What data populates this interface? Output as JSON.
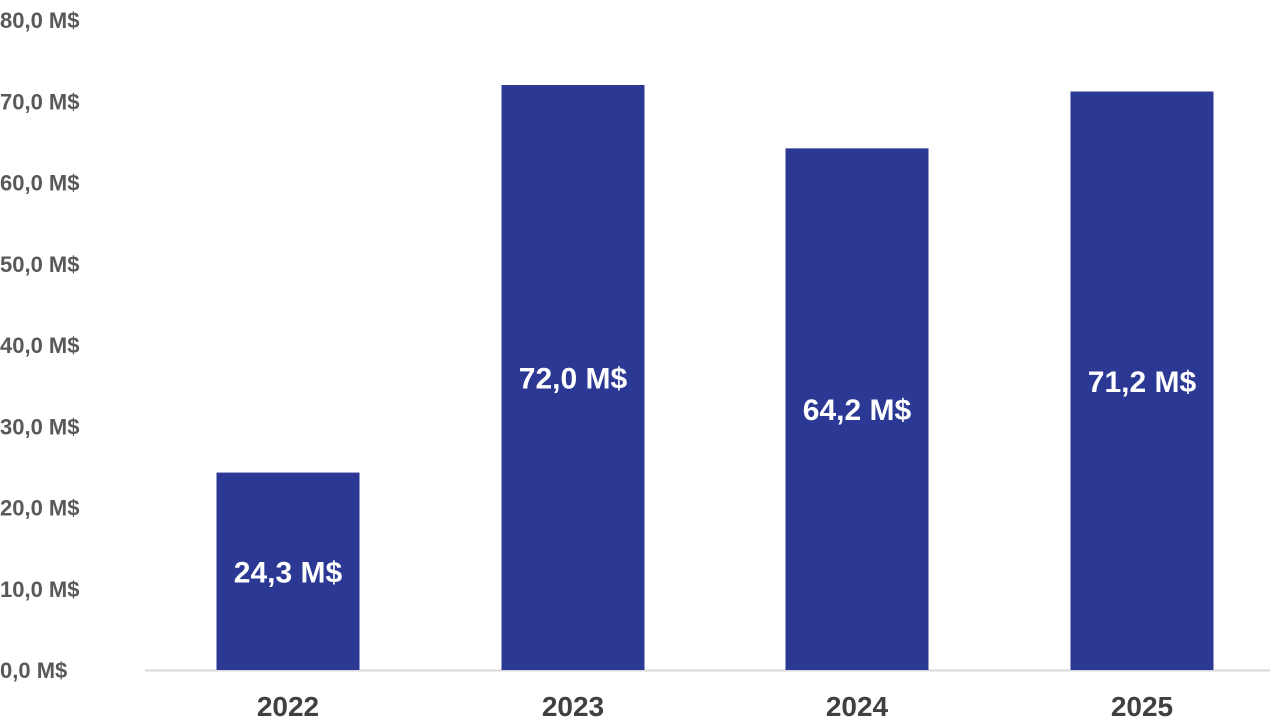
{
  "chart_data": {
    "type": "bar",
    "categories": [
      "2022",
      "2023",
      "2024",
      "2025"
    ],
    "values": [
      24.3,
      72.0,
      64.2,
      71.2
    ],
    "data_labels": [
      "24,3 M$",
      "72,0 M$",
      "64,2 M$",
      "71,2 M$"
    ],
    "ylim": [
      0,
      80
    ],
    "yticks": [
      "0,0 M$",
      "10,0 M$",
      "20,0 M$",
      "30,0 M$",
      "40,0 M$",
      "50,0 M$",
      "60,0 M$",
      "70,0 M$",
      "80,0 M$"
    ],
    "title": "",
    "xlabel": "",
    "ylabel": "",
    "grid": false,
    "colors": {
      "bar": "#2b3894",
      "axis": "#d9d9d9"
    }
  }
}
